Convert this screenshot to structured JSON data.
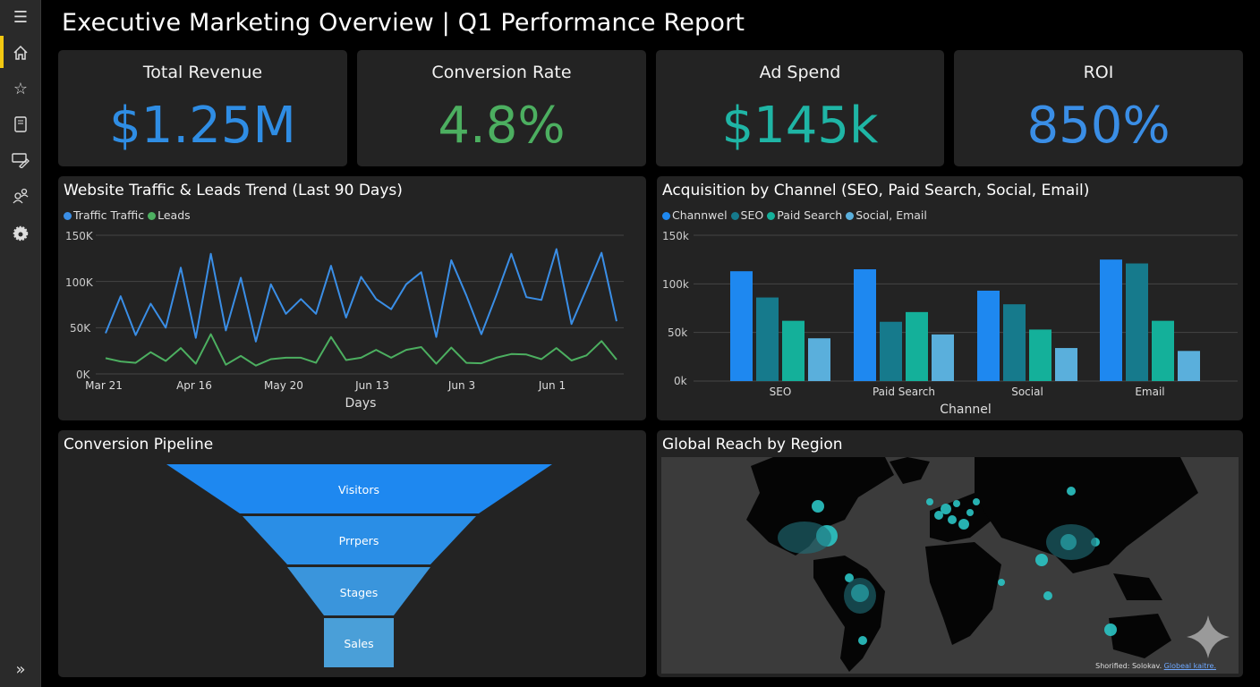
{
  "header": {
    "title": "Executive Marketing Overview | Q1 Performance Report"
  },
  "sidebar": {
    "items": [
      {
        "icon": "menu-icon"
      },
      {
        "icon": "home-icon",
        "active": true
      },
      {
        "icon": "star-icon"
      },
      {
        "icon": "report-icon"
      },
      {
        "icon": "edit-icon"
      },
      {
        "icon": "users-icon"
      },
      {
        "icon": "settings-icon"
      },
      {
        "icon": "expand-icon"
      }
    ],
    "accent": "#f2c811"
  },
  "kpis": [
    {
      "label": "Total Revenue",
      "value": "$1.25M",
      "color": "#2f8de4"
    },
    {
      "label": "Conversion Rate",
      "value": "4.8%",
      "color": "#4caf60"
    },
    {
      "label": "Ad Spend",
      "value": "$145k",
      "color": "#1fb5a5"
    },
    {
      "label": "ROI",
      "value": "850%",
      "color": "#3a8ee6"
    }
  ],
  "chart_data": [
    {
      "type": "line",
      "title": "Website Traffic & Leads Trend (Last 90 Days)",
      "xlabel": "Days",
      "ylabel": "",
      "ylim": [
        0,
        150000
      ],
      "yticks": [
        "0K",
        "50K",
        "100K",
        "150K"
      ],
      "xticks": [
        "Mar 21",
        "Apr 16",
        "May 20",
        "Jun 13",
        "Jun 3",
        "Jun 1"
      ],
      "grid": true,
      "legend": "top-left",
      "series": [
        {
          "name": "Traffic Traffic",
          "color": "#3a8ee6",
          "values": [
            44000,
            84000,
            42000,
            76000,
            50000,
            115000,
            39000,
            130000,
            47000,
            104000,
            35000,
            97000,
            65000,
            81000,
            65000,
            117000,
            61000,
            105000,
            81000,
            70000,
            97000,
            110000,
            40000,
            123000,
            85000,
            43000,
            85000,
            130000,
            83000,
            80000,
            135000,
            54000,
            92000,
            131000,
            57000
          ]
        },
        {
          "name": "Leads",
          "color": "#4caf60",
          "values": [
            17000,
            13500,
            12000,
            23500,
            14000,
            28000,
            11000,
            43000,
            10000,
            19500,
            9000,
            16000,
            17500,
            17500,
            12000,
            40000,
            15000,
            17500,
            26000,
            17500,
            26000,
            29000,
            11000,
            28500,
            12000,
            11500,
            17500,
            21500,
            21000,
            16000,
            28000,
            14500,
            20000,
            35500,
            15500
          ]
        }
      ]
    },
    {
      "type": "bar",
      "title": "Acquisition by Channel (SEO, Paid Search, Social, Email)",
      "xlabel": "Channel",
      "ylabel": "",
      "ylim": [
        0,
        150000
      ],
      "yticks": [
        "0k",
        "50k",
        "100k",
        "150k"
      ],
      "categories": [
        "SEO",
        "Paid Search",
        "Social",
        "Email"
      ],
      "grid": true,
      "legend": "top-left",
      "series": [
        {
          "name": "Channwel",
          "color": "#1e88f0",
          "values": [
            113000,
            115000,
            93000,
            125000
          ]
        },
        {
          "name": "SEO",
          "color": "#167a8c",
          "values": [
            86000,
            61000,
            79000,
            121000
          ]
        },
        {
          "name": "Paid Search",
          "color": "#14b09a",
          "values": [
            62000,
            71000,
            53000,
            62000
          ]
        },
        {
          "name": "Social, Email",
          "color": "#5aafdc",
          "values": [
            44000,
            48000,
            34000,
            31000
          ]
        }
      ]
    }
  ],
  "funnel": {
    "title": "Conversion Pipeline",
    "stages": [
      {
        "label": "Visitors",
        "color": "#1e88f0"
      },
      {
        "label": "Prrpers",
        "color": "#2a8ee6"
      },
      {
        "label": "Stages",
        "color": "#3a95dc"
      },
      {
        "label": "Sales",
        "color": "#4a9fd8"
      }
    ]
  },
  "map": {
    "title": "Global Reach by Region",
    "bubble_color": "#2bc4c4",
    "footer_text": "Shorified: Solokav.",
    "footer_link": "Globeal kaitre."
  }
}
